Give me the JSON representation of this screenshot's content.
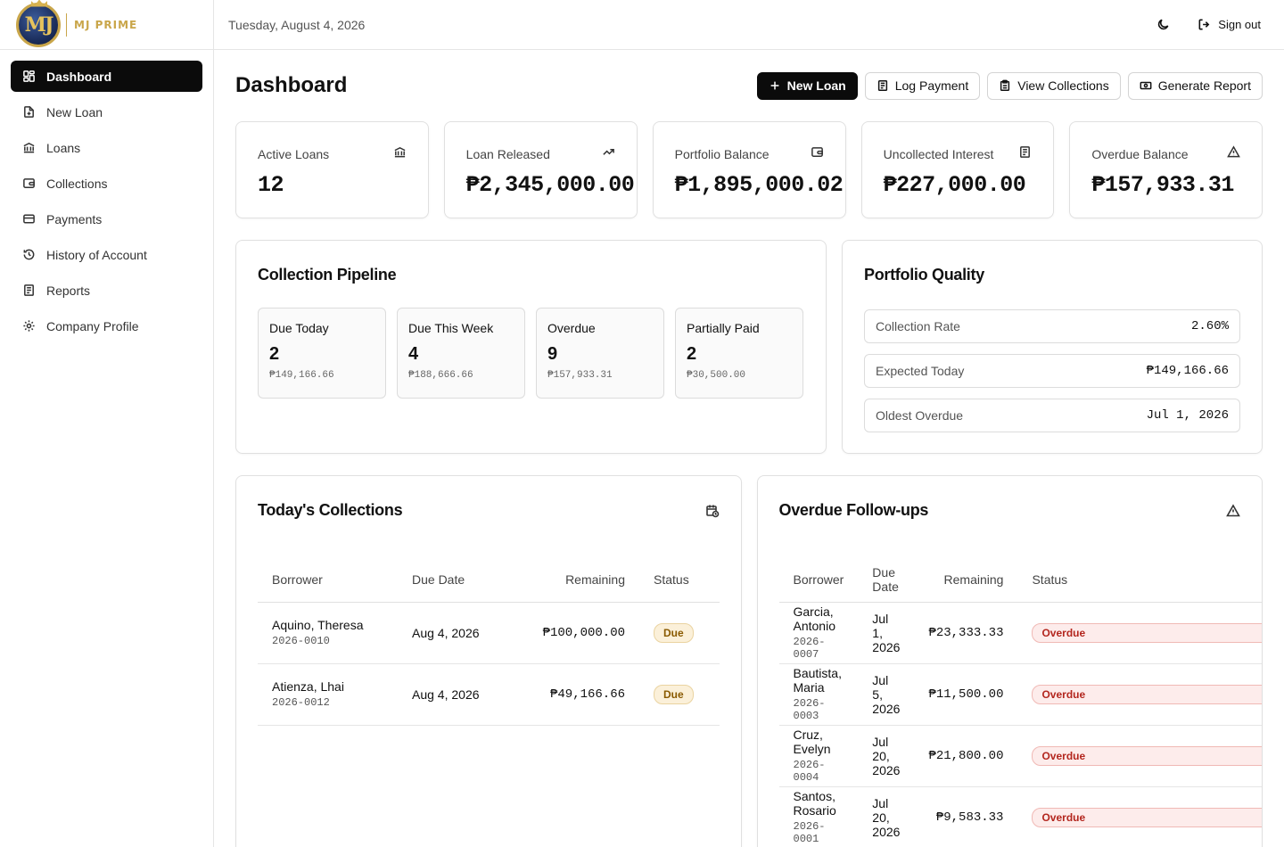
{
  "brand": {
    "name": "MJ PRIME",
    "logo_text": "MJ"
  },
  "sidebar": {
    "items": [
      {
        "label": "Dashboard",
        "icon": "dashboard-icon",
        "active": true
      },
      {
        "label": "New Loan",
        "icon": "file-plus-icon",
        "active": false
      },
      {
        "label": "Loans",
        "icon": "bank-icon",
        "active": false
      },
      {
        "label": "Collections",
        "icon": "wallet-icon",
        "active": false
      },
      {
        "label": "Payments",
        "icon": "credit-card-icon",
        "active": false
      },
      {
        "label": "History of Account",
        "icon": "history-icon",
        "active": false
      },
      {
        "label": "Reports",
        "icon": "report-icon",
        "active": false
      },
      {
        "label": "Company Profile",
        "icon": "gear-icon",
        "active": false
      }
    ]
  },
  "topbar": {
    "date": "Tuesday, August 4, 2026",
    "theme_icon": "moon-icon",
    "signout_label": "Sign out"
  },
  "header": {
    "title": "Dashboard",
    "actions": {
      "new_loan": "New Loan",
      "log_payment": "Log Payment",
      "view_collections": "View Collections",
      "generate_report": "Generate Report"
    }
  },
  "stats": [
    {
      "label": "Active Loans",
      "value": "12",
      "icon": "bank-icon"
    },
    {
      "label": "Loan Released",
      "value": "₱2,345,000.00",
      "icon": "trending-up-icon"
    },
    {
      "label": "Portfolio Balance",
      "value": "₱1,895,000.02",
      "icon": "wallet-icon"
    },
    {
      "label": "Uncollected Interest",
      "value": "₱227,000.00",
      "icon": "receipt-icon"
    },
    {
      "label": "Overdue Balance",
      "value": "₱157,933.31",
      "icon": "alert-triangle-icon"
    }
  ],
  "pipeline": {
    "title": "Collection Pipeline",
    "items": [
      {
        "label": "Due Today",
        "count": "2",
        "amount": "₱149,166.66"
      },
      {
        "label": "Due This Week",
        "count": "4",
        "amount": "₱188,666.66"
      },
      {
        "label": "Overdue",
        "count": "9",
        "amount": "₱157,933.31"
      },
      {
        "label": "Partially Paid",
        "count": "2",
        "amount": "₱30,500.00"
      }
    ]
  },
  "quality": {
    "title": "Portfolio Quality",
    "rows": [
      {
        "label": "Collection Rate",
        "value": "2.60%"
      },
      {
        "label": "Expected Today",
        "value": "₱149,166.66"
      },
      {
        "label": "Oldest Overdue",
        "value": "Jul 1, 2026"
      }
    ]
  },
  "today_collections": {
    "title": "Today's Collections",
    "columns": [
      "Borrower",
      "Due Date",
      "Remaining",
      "Status"
    ],
    "rows": [
      {
        "name": "Aquino, Theresa",
        "id": "2026-0010",
        "due": "Aug 4, 2026",
        "remaining": "₱100,000.00",
        "status": "Due"
      },
      {
        "name": "Atienza, Lhai",
        "id": "2026-0012",
        "due": "Aug 4, 2026",
        "remaining": "₱49,166.66",
        "status": "Due"
      }
    ]
  },
  "overdue_followups": {
    "title": "Overdue Follow-ups",
    "columns": [
      "Borrower",
      "Due Date",
      "Remaining",
      "Status"
    ],
    "rows": [
      {
        "name": "Garcia, Antonio",
        "id": "2026-0007",
        "due": "Jul 1, 2026",
        "remaining": "₱23,333.33",
        "status": "Overdue"
      },
      {
        "name": "Bautista, Maria",
        "id": "2026-0003",
        "due": "Jul 5, 2026",
        "remaining": "₱11,500.00",
        "status": "Overdue"
      },
      {
        "name": "Cruz, Evelyn",
        "id": "2026-0004",
        "due": "Jul 20, 2026",
        "remaining": "₱21,800.00",
        "status": "Overdue"
      },
      {
        "name": "Santos, Rosario",
        "id": "2026-0001",
        "due": "Jul 20, 2026",
        "remaining": "₱9,583.33",
        "status": "Overdue"
      }
    ]
  }
}
